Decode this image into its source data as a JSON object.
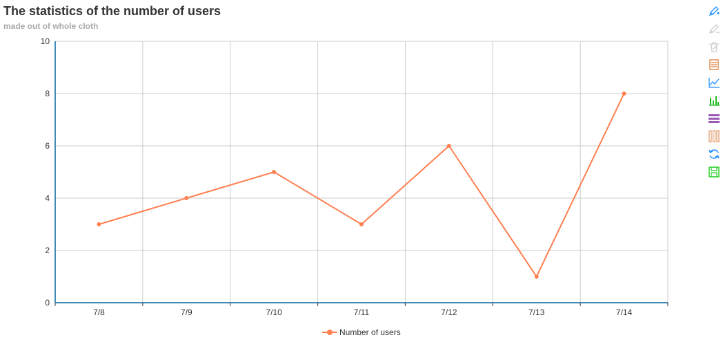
{
  "title": "The statistics of the number of users",
  "subtitle": "made out of whole cloth",
  "colors": {
    "series": "#ff7f50",
    "axis": "#408ab4",
    "grid": "#cccccc",
    "text": "#333333"
  },
  "toolbox": [
    {
      "name": "mark-icon",
      "color": "#1e90ff"
    },
    {
      "name": "mark-undo-icon",
      "color": "#cccccc"
    },
    {
      "name": "mark-clear-icon",
      "color": "#cccccc"
    },
    {
      "name": "data-view-icon",
      "color": "#e07b39"
    },
    {
      "name": "line-chart-icon",
      "color": "#1e90ff"
    },
    {
      "name": "bar-chart-icon",
      "color": "#22bb22"
    },
    {
      "name": "stack-icon",
      "color": "#9b59b6"
    },
    {
      "name": "tiled-icon",
      "color": "#e09a6a"
    },
    {
      "name": "restore-icon",
      "color": "#1e90ff"
    },
    {
      "name": "save-image-icon",
      "color": "#22cc22"
    }
  ],
  "chart_data": {
    "type": "line",
    "categories": [
      "7/8",
      "7/9",
      "7/10",
      "7/11",
      "7/12",
      "7/13",
      "7/14"
    ],
    "series": [
      {
        "name": "Number of users",
        "values": [
          3,
          4,
          5,
          3,
          6,
          1,
          8
        ]
      }
    ],
    "ylim": [
      0,
      10
    ],
    "yticks": [
      0,
      2,
      4,
      6,
      8,
      10
    ],
    "grid": true,
    "legend_position": "bottom-center"
  }
}
